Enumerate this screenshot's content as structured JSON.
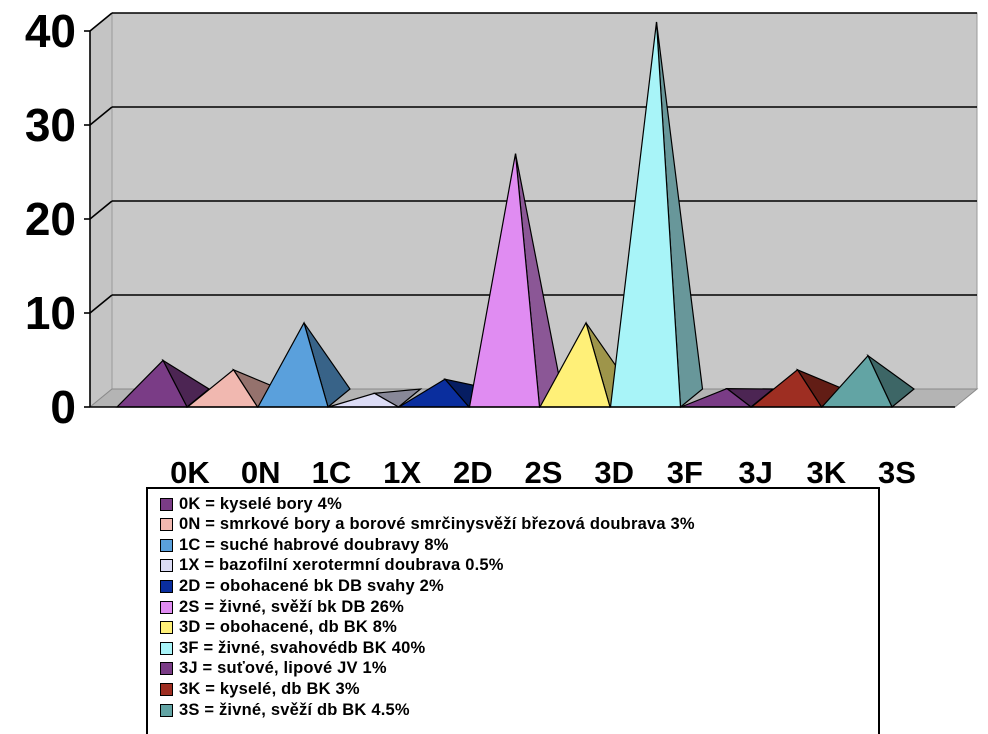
{
  "chart_data": {
    "type": "bar",
    "style": "3d-pyramid",
    "title": "",
    "xlabel": "",
    "ylabel": "",
    "ylim": [
      0,
      40
    ],
    "yticks": [
      "0",
      "10",
      "20",
      "30",
      "40"
    ],
    "grid": true,
    "legend_placement": "bottom",
    "categories": [
      "0K",
      "0N",
      "1C",
      "1X",
      "2D",
      "2S",
      "3D",
      "3F",
      "3J",
      "3K",
      "3S"
    ],
    "values": [
      4,
      3,
      8,
      0.5,
      2,
      26,
      8,
      40,
      1,
      3,
      4.5
    ],
    "colors": [
      "#7a3c86",
      "#f1b8b0",
      "#5aa0dc",
      "#dcdcf5",
      "#0a2e9e",
      "#e08cf2",
      "#fff078",
      "#a8f4f8",
      "#7a3c86",
      "#9e2e22",
      "#62a4a4"
    ],
    "legend": [
      "0K = kyselé bory 4%",
      "0N = smrkové bory a borové smrčinysvěží březová doubrava 3%",
      "1C = suché habrové doubravy 8%",
      "1X = bazofilní xerotermní doubrava 0.5%",
      "2D = obohacené bk DB svahy 2%",
      "2S = živné, svěží bk DB 26%",
      "3D = obohacené, db BK 8%",
      "3F = živné, svahovédb BK 40%",
      "3J = suťové, lipové JV 1%",
      "3K = kyselé, db BK 3%",
      "3S = živné, svěží db BK 4.5%"
    ]
  }
}
